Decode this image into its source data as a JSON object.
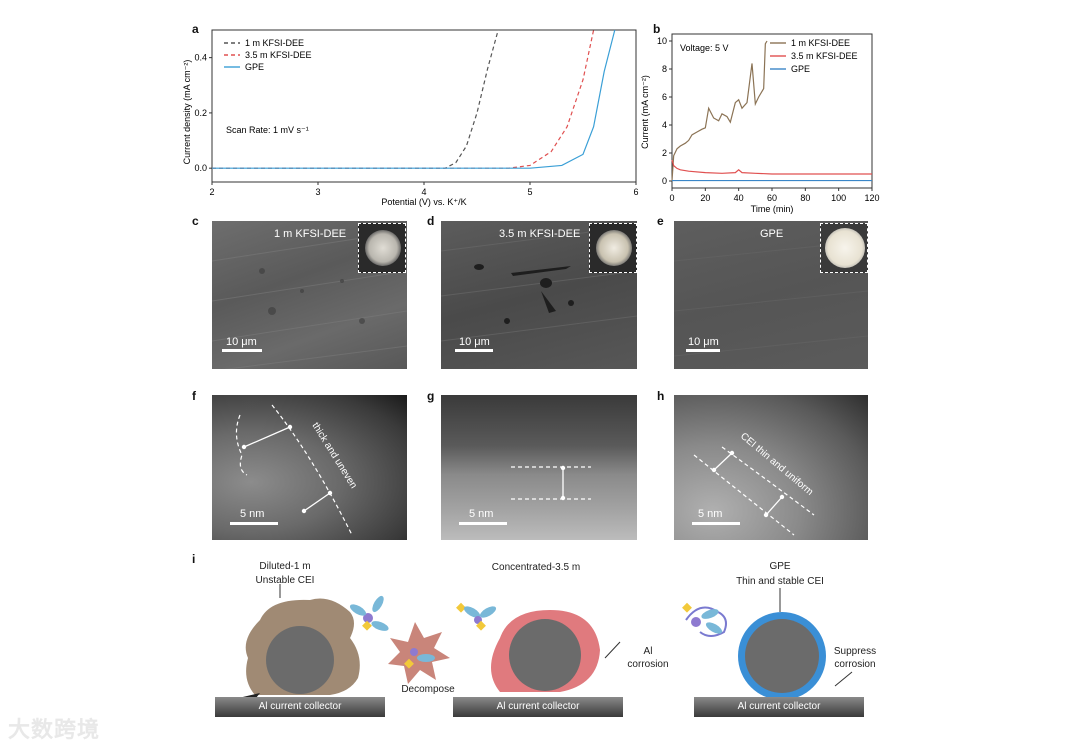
{
  "panels": {
    "a": "a",
    "b": "b",
    "c": "c",
    "d": "d",
    "e": "e",
    "f": "f",
    "g": "g",
    "h": "h",
    "i": "i"
  },
  "chart_a": {
    "type": "line",
    "xlabel": "Potential (V) vs. K⁺/K",
    "ylabel": "Current density (mA cm⁻²)",
    "xlim": [
      2,
      6
    ],
    "ylim": [
      -0.05,
      0.5
    ],
    "xticks": [
      "2",
      "3",
      "4",
      "5",
      "6"
    ],
    "yticks": [
      "0.0",
      "0.2",
      "0.4"
    ],
    "annotation": "Scan Rate: 1 mV s⁻¹",
    "legend": [
      "1 m KFSI-DEE",
      "3.5 m KFSI-DEE",
      "GPE"
    ]
  },
  "chart_b": {
    "type": "line",
    "xlabel": "Time (min)",
    "ylabel": "Current (mA cm⁻²)",
    "xlim": [
      0,
      120
    ],
    "ylim": [
      -0.5,
      10.5
    ],
    "xticks": [
      "0",
      "20",
      "40",
      "60",
      "80",
      "100",
      "120"
    ],
    "yticks": [
      "0",
      "2",
      "4",
      "6",
      "8",
      "10"
    ],
    "annotation": "Voltage: 5 V",
    "legend": [
      "1 m KFSI-DEE",
      "3.5 m KFSI-DEE",
      "GPE"
    ]
  },
  "chart_data": [
    {
      "type": "line",
      "xlabel": "Potential (V) vs. K⁺/K",
      "ylabel": "Current density (mA cm⁻²)",
      "xlim": [
        2,
        6
      ],
      "ylim": [
        -0.05,
        0.5
      ],
      "series": [
        {
          "name": "1 m KFSI-DEE",
          "color": "#555555",
          "dash": true,
          "x": [
            2,
            3,
            4,
            4.2,
            4.3,
            4.4,
            4.5,
            4.6,
            4.7
          ],
          "y": [
            0,
            0,
            0,
            0,
            0.02,
            0.08,
            0.2,
            0.36,
            0.55
          ]
        },
        {
          "name": "3.5 m KFSI-DEE",
          "color": "#e05050",
          "dash": true,
          "x": [
            2,
            3,
            4,
            4.8,
            5.0,
            5.2,
            5.35,
            5.5,
            5.6
          ],
          "y": [
            0,
            0,
            0,
            0,
            0.01,
            0.06,
            0.15,
            0.32,
            0.55
          ]
        },
        {
          "name": "GPE",
          "color": "#3a9fd6",
          "dash": false,
          "x": [
            2,
            3,
            4,
            5,
            5.3,
            5.5,
            5.6,
            5.7,
            5.8
          ],
          "y": [
            0,
            0,
            0,
            0,
            0.01,
            0.05,
            0.15,
            0.35,
            0.55
          ]
        }
      ]
    },
    {
      "type": "line",
      "xlabel": "Time (min)",
      "ylabel": "Current (mA cm⁻²)",
      "xlim": [
        0,
        120
      ],
      "ylim": [
        -0.5,
        10.5
      ],
      "series": [
        {
          "name": "1 m KFSI-DEE",
          "color": "#8b7355",
          "x": [
            0,
            1,
            3,
            5,
            8,
            10,
            12,
            15,
            18,
            20,
            22,
            25,
            28,
            30,
            33,
            35,
            38,
            40,
            42,
            45,
            48,
            50,
            52,
            55,
            56,
            57
          ],
          "y": [
            0,
            1.8,
            2.3,
            2.5,
            2.7,
            2.9,
            3.3,
            3.5,
            3.7,
            3.8,
            5.2,
            4.5,
            4.3,
            4.8,
            4.6,
            4.2,
            5.6,
            5.8,
            5.2,
            5.6,
            8.4,
            5.5,
            6.0,
            6.6,
            9.8,
            10.0
          ]
        },
        {
          "name": "3.5 m KFSI-DEE",
          "color": "#e05050",
          "x": [
            0,
            1,
            3,
            5,
            10,
            20,
            30,
            38,
            40,
            42,
            50,
            60,
            80,
            100,
            120
          ],
          "y": [
            1.5,
            1.1,
            0.9,
            0.8,
            0.7,
            0.6,
            0.55,
            0.6,
            0.8,
            0.6,
            0.55,
            0.5,
            0.5,
            0.5,
            0.5
          ]
        },
        {
          "name": "GPE",
          "color": "#3a86c8",
          "x": [
            0,
            20,
            40,
            60,
            80,
            100,
            120
          ],
          "y": [
            0.03,
            0.03,
            0.03,
            0.03,
            0.03,
            0.03,
            0.03
          ]
        }
      ]
    }
  ],
  "sem": {
    "c": {
      "label": "1 m KFSI-DEE",
      "scale": "10 μm"
    },
    "d": {
      "label": "3.5 m KFSI-DEE",
      "scale": "10 μm"
    },
    "e": {
      "label": "GPE",
      "scale": "10 μm"
    }
  },
  "tem": {
    "f": {
      "note": "thick and uneven",
      "scale": "5 nm"
    },
    "g": {
      "scale": "5 nm"
    },
    "h": {
      "note": "CEI thin and uniform",
      "scale": "5 nm"
    }
  },
  "schematic": {
    "left_title_1": "Diluted-1 m",
    "left_title_2": "Unstable CEI",
    "mid_title": "Concentrated-3.5 m",
    "right_title_1": "GPE",
    "right_title_2": "Thin and stable CEI",
    "decompose": "Decompose",
    "al_corrosion_1": "Al",
    "al_corrosion_2": "corrosion",
    "suppress_1": "Suppress",
    "suppress_2": "corrosion",
    "collector": "Al current collector"
  },
  "watermark": "大数跨境"
}
